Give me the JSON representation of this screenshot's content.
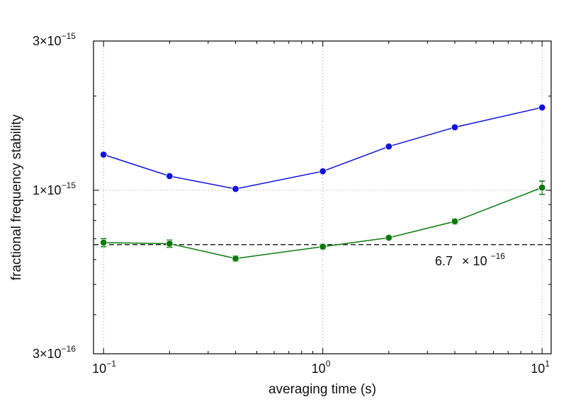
{
  "chart_data": {
    "type": "line",
    "x_scale": "log",
    "y_scale": "log",
    "xlabel": "averaging time (s)",
    "ylabel": "fractional frequency stability",
    "xlim": [
      0.09,
      11
    ],
    "ylim": [
      3e-16,
      3e-15
    ],
    "x_ticks": [
      {
        "value": 0.1,
        "base": "10",
        "exp": "−1"
      },
      {
        "value": 1,
        "base": "10",
        "exp": "0"
      },
      {
        "value": 10,
        "base": "10",
        "exp": "1"
      }
    ],
    "y_ticks": [
      {
        "value": 3e-16,
        "mant": "3",
        "times": "×10",
        "exp": "−16"
      },
      {
        "value": 1e-15,
        "mant": "1",
        "times": "×10",
        "exp": "−15"
      },
      {
        "value": 3e-15,
        "mant": "3",
        "times": "×10",
        "exp": "−15"
      }
    ],
    "grid": true,
    "x": [
      0.1,
      0.2,
      0.4,
      1,
      2,
      4,
      10
    ],
    "series": [
      {
        "name": "blue",
        "color": "#1010e0",
        "values": [
          1.3e-15,
          1.11e-15,
          1.01e-15,
          1.15e-15,
          1.38e-15,
          1.59e-15,
          1.84e-15
        ],
        "errors": [
          1e-17,
          1e-17,
          1e-17,
          1e-17,
          1e-17,
          1e-17,
          2e-17
        ]
      },
      {
        "name": "green",
        "color": "#0a7a0a",
        "values": [
          6.8e-16,
          6.75e-16,
          6.05e-16,
          6.6e-16,
          7.05e-16,
          7.95e-16,
          1.02e-15
        ],
        "errors": [
          2e-17,
          1.8e-17,
          1.2e-17,
          1.2e-17,
          8e-18,
          1.5e-17,
          5e-17
        ]
      }
    ],
    "reference": {
      "value": 6.7e-16,
      "color": "#000000",
      "label_mant": "6.7",
      "label_times": "× 10",
      "label_exp": "−16"
    }
  }
}
